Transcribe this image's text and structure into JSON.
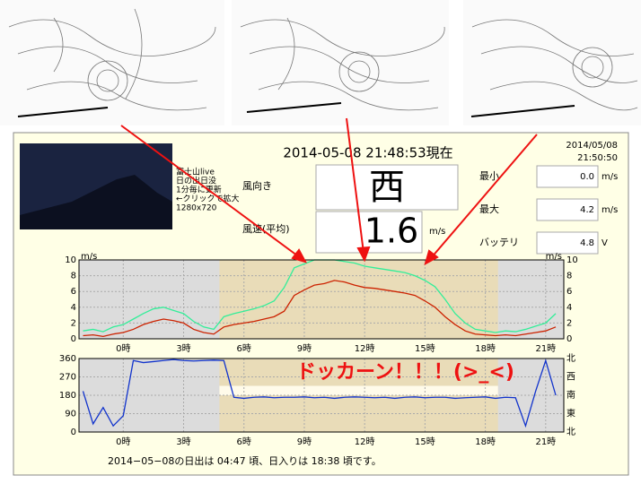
{
  "header": {
    "title": "2014-05-08 21:48:53現在",
    "date": "2014/05/08",
    "time": "21:50:50"
  },
  "camera": {
    "lines": [
      "富士山live",
      "日の出日没",
      "1分毎に更新",
      "←クリックで拡大",
      "1280x720"
    ]
  },
  "wind": {
    "direction_label": "風向き",
    "direction": "西",
    "speed_label": "風速(平均)",
    "speed": "1.6",
    "speed_unit": "m/s"
  },
  "stats": [
    {
      "label": "最小",
      "value": "0.0",
      "unit": "m/s"
    },
    {
      "label": "最大",
      "value": "4.2",
      "unit": "m/s"
    },
    {
      "label": "バッテリ",
      "value": "4.8",
      "unit": "V"
    }
  ],
  "annotation": "ドッカーン！！！(>_<)",
  "footer": "2014−05−08の日出は 04:47 頃、日入りは 18:38 頃です。",
  "chart_data": [
    {
      "type": "line",
      "y_unit": "m/s",
      "daylight_hours": [
        4.78,
        18.63
      ],
      "x": [
        -2,
        -1.5,
        -1,
        -0.5,
        0,
        0.5,
        1,
        1.5,
        2,
        2.5,
        3,
        3.5,
        4,
        4.5,
        5,
        5.5,
        6,
        6.5,
        7,
        7.5,
        8,
        8.5,
        9,
        9.5,
        10,
        10.5,
        11,
        11.5,
        12,
        12.5,
        13,
        13.5,
        14,
        14.5,
        15,
        15.5,
        16,
        16.5,
        17,
        17.5,
        18,
        18.5,
        19,
        19.5,
        20,
        20.5,
        21,
        21.5
      ],
      "xlim": [
        -2.2,
        21.9
      ],
      "xticks": [
        {
          "value": 0,
          "label": "0時"
        },
        {
          "value": 3,
          "label": "3時"
        },
        {
          "value": 6,
          "label": "6時"
        },
        {
          "value": 9,
          "label": "9時"
        },
        {
          "value": 12,
          "label": "12時"
        },
        {
          "value": 15,
          "label": "15時"
        },
        {
          "value": 18,
          "label": "18時"
        },
        {
          "value": 21,
          "label": "21時"
        }
      ],
      "ylim": [
        0,
        10
      ],
      "yticks": [
        0,
        2,
        4,
        6,
        8,
        10
      ],
      "grid": true,
      "series": [
        {
          "color": "#33ee99",
          "values": [
            1.0,
            1.2,
            0.9,
            1.5,
            1.8,
            2.5,
            3.2,
            3.8,
            4.0,
            3.6,
            3.2,
            2.2,
            1.5,
            1.2,
            2.8,
            3.2,
            3.5,
            3.8,
            4.2,
            4.8,
            6.5,
            9.0,
            9.5,
            10.0,
            10.0,
            10.0,
            9.8,
            9.6,
            9.2,
            9.0,
            8.8,
            8.6,
            8.4,
            8.0,
            7.4,
            6.6,
            5.0,
            3.2,
            2.0,
            1.2,
            1.0,
            0.8,
            1.0,
            0.9,
            1.2,
            1.6,
            2.0,
            3.2
          ]
        },
        {
          "color": "#cc2200",
          "values": [
            0.4,
            0.5,
            0.3,
            0.6,
            0.8,
            1.2,
            1.8,
            2.2,
            2.5,
            2.3,
            2.0,
            1.2,
            0.8,
            0.6,
            1.5,
            1.8,
            2.0,
            2.2,
            2.5,
            2.8,
            3.5,
            5.5,
            6.2,
            6.8,
            7.0,
            7.4,
            7.2,
            6.8,
            6.5,
            6.4,
            6.2,
            6.0,
            5.8,
            5.5,
            4.8,
            4.0,
            2.8,
            1.8,
            1.0,
            0.6,
            0.5,
            0.4,
            0.5,
            0.4,
            0.6,
            0.8,
            1.0,
            1.5
          ]
        }
      ]
    },
    {
      "type": "line",
      "daylight_hours": [
        4.78,
        18.63
      ],
      "x": [
        -2,
        -1.5,
        -1,
        -0.5,
        0,
        0.5,
        1,
        1.5,
        2,
        2.5,
        3,
        3.5,
        4,
        4.5,
        5,
        5.5,
        6,
        6.5,
        7,
        7.5,
        8,
        8.5,
        9,
        9.5,
        10,
        10.5,
        11,
        11.5,
        12,
        12.5,
        13,
        13.5,
        14,
        14.5,
        15,
        15.5,
        16,
        16.5,
        17,
        17.5,
        18,
        18.5,
        19,
        19.5,
        20,
        20.5,
        21,
        21.5
      ],
      "xlim": [
        -2.2,
        21.9
      ],
      "xticks": [
        {
          "value": 0,
          "label": "0時"
        },
        {
          "value": 3,
          "label": "3時"
        },
        {
          "value": 6,
          "label": "6時"
        },
        {
          "value": 9,
          "label": "9時"
        },
        {
          "value": 12,
          "label": "12時"
        },
        {
          "value": 15,
          "label": "15時"
        },
        {
          "value": 18,
          "label": "18時"
        },
        {
          "value": 21,
          "label": "21時"
        }
      ],
      "ylim": [
        0,
        360
      ],
      "yticks": [
        0,
        90,
        180,
        270,
        360
      ],
      "grid": true,
      "y_right_ticks": [
        {
          "value": 360,
          "label": "北"
        },
        {
          "value": 270,
          "label": "西"
        },
        {
          "value": 180,
          "label": "南"
        },
        {
          "value": 90,
          "label": "東"
        },
        {
          "value": 0,
          "label": "北"
        }
      ],
      "series": [
        {
          "color": "#1133cc",
          "values": [
            200,
            40,
            120,
            30,
            80,
            350,
            340,
            345,
            350,
            355,
            350,
            348,
            350,
            352,
            350,
            170,
            165,
            170,
            172,
            168,
            170,
            170,
            172,
            168,
            170,
            165,
            170,
            172,
            170,
            168,
            170,
            165,
            170,
            172,
            168,
            170,
            170,
            165,
            168,
            170,
            172,
            165,
            170,
            168,
            30,
            200,
            350,
            180
          ]
        }
      ]
    }
  ]
}
